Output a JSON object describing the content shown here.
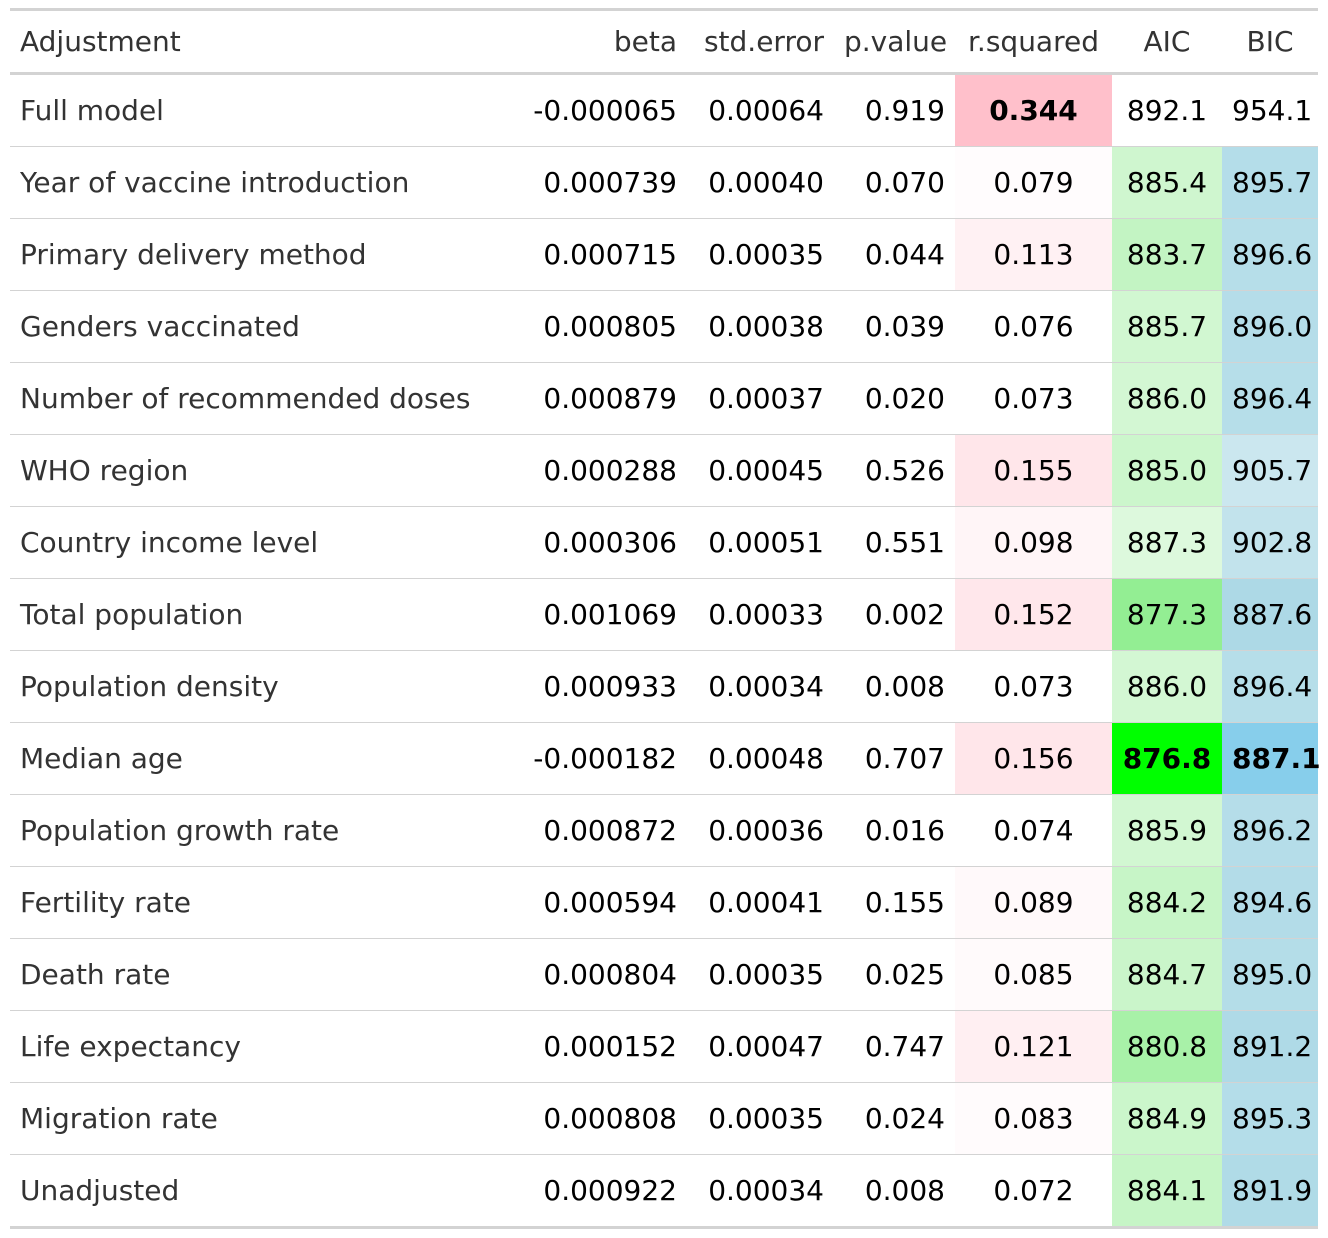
{
  "chart_data": {
    "type": "table",
    "columns": [
      "Adjustment",
      "beta",
      "std.error",
      "p.value",
      "r.squared",
      "AIC",
      "BIC"
    ],
    "rows": [
      {
        "label": "Full model",
        "beta": "-0.000065",
        "std_error": "0.00064",
        "p_value": "0.919",
        "r_squared": "0.344",
        "aic": "892.1",
        "bic": "954.1",
        "r_squared_bg": "#ffc0cb",
        "aic_bg": "#ffffff",
        "bic_bg": "#ffffff",
        "bold_r_squared": true,
        "bold_aic": false,
        "bold_bic": false
      },
      {
        "label": "Year of vaccine introduction",
        "beta": "0.000739",
        "std_error": "0.00040",
        "p_value": "0.070",
        "r_squared": "0.079",
        "aic": "885.4",
        "bic": "895.7",
        "r_squared_bg": "#fffcfd",
        "aic_bg": "#cff6cf",
        "bic_bg": "#b4dde9",
        "bold_r_squared": false,
        "bold_aic": false,
        "bold_bic": false
      },
      {
        "label": "Primary delivery method",
        "beta": "0.000715",
        "std_error": "0.00035",
        "p_value": "0.044",
        "r_squared": "0.113",
        "aic": "883.7",
        "bic": "896.6",
        "r_squared_bg": "#fff1f3",
        "aic_bg": "#c3f4c3",
        "bic_bg": "#b6dee9",
        "bold_r_squared": false,
        "bold_aic": false,
        "bold_bic": false
      },
      {
        "label": "Genders vaccinated",
        "beta": "0.000805",
        "std_error": "0.00038",
        "p_value": "0.039",
        "r_squared": "0.076",
        "aic": "885.7",
        "bic": "896.0",
        "r_squared_bg": "#ffffff",
        "aic_bg": "#d1f7d1",
        "bic_bg": "#b5dde9",
        "bold_r_squared": false,
        "bold_aic": false,
        "bold_bic": false
      },
      {
        "label": "Number of recommended doses",
        "beta": "0.000879",
        "std_error": "0.00037",
        "p_value": "0.020",
        "r_squared": "0.073",
        "aic": "886.0",
        "bic": "896.4",
        "r_squared_bg": "#ffffff",
        "aic_bg": "#d3f7d3",
        "bic_bg": "#b6dee9",
        "bold_r_squared": false,
        "bold_aic": false,
        "bold_bic": false
      },
      {
        "label": "WHO region",
        "beta": "0.000288",
        "std_error": "0.00045",
        "p_value": "0.526",
        "r_squared": "0.155",
        "aic": "885.0",
        "bic": "905.7",
        "r_squared_bg": "#ffe6ea",
        "aic_bg": "#ccf6cc",
        "bic_bg": "#cbe7ef",
        "bold_r_squared": false,
        "bold_aic": false,
        "bold_bic": false
      },
      {
        "label": "Country income level",
        "beta": "0.000306",
        "std_error": "0.00051",
        "p_value": "0.551",
        "r_squared": "0.098",
        "aic": "887.3",
        "bic": "902.8",
        "r_squared_bg": "#fff5f7",
        "aic_bg": "#ddf9dd",
        "bic_bg": "#c2e3ec",
        "bold_r_squared": false,
        "bold_aic": false,
        "bold_bic": false
      },
      {
        "label": "Total population",
        "beta": "0.001069",
        "std_error": "0.00033",
        "p_value": "0.002",
        "r_squared": "0.152",
        "aic": "877.3",
        "bic": "887.6",
        "r_squared_bg": "#ffe7eb",
        "aic_bg": "#93ee93",
        "bic_bg": "#add9e6",
        "bold_r_squared": false,
        "bold_aic": false,
        "bold_bic": false
      },
      {
        "label": "Population density",
        "beta": "0.000933",
        "std_error": "0.00034",
        "p_value": "0.008",
        "r_squared": "0.073",
        "aic": "886.0",
        "bic": "896.4",
        "r_squared_bg": "#ffffff",
        "aic_bg": "#d3f7d3",
        "bic_bg": "#b6dee9",
        "bold_r_squared": false,
        "bold_aic": false,
        "bold_bic": false
      },
      {
        "label": "Median age",
        "beta": "-0.000182",
        "std_error": "0.00048",
        "p_value": "0.707",
        "r_squared": "0.156",
        "aic": "876.8",
        "bic": "887.1",
        "r_squared_bg": "#ffe6ea",
        "aic_bg": "#00ff00",
        "bic_bg": "#87ceeb",
        "bold_r_squared": false,
        "bold_aic": true,
        "bold_bic": true
      },
      {
        "label": "Population growth rate",
        "beta": "0.000872",
        "std_error": "0.00036",
        "p_value": "0.016",
        "r_squared": "0.074",
        "aic": "885.9",
        "bic": "896.2",
        "r_squared_bg": "#ffffff",
        "aic_bg": "#d2f7d2",
        "bic_bg": "#b5dde9",
        "bold_r_squared": false,
        "bold_aic": false,
        "bold_bic": false
      },
      {
        "label": "Fertility rate",
        "beta": "0.000594",
        "std_error": "0.00041",
        "p_value": "0.155",
        "r_squared": "0.089",
        "aic": "884.2",
        "bic": "894.6",
        "r_squared_bg": "#fff9fa",
        "aic_bg": "#c7f5c7",
        "bic_bg": "#b3dce8",
        "bold_r_squared": false,
        "bold_aic": false,
        "bold_bic": false
      },
      {
        "label": "Death rate",
        "beta": "0.000804",
        "std_error": "0.00035",
        "p_value": "0.025",
        "r_squared": "0.085",
        "aic": "884.7",
        "bic": "895.0",
        "r_squared_bg": "#fffafb",
        "aic_bg": "#caf5ca",
        "bic_bg": "#b4dde8",
        "bold_r_squared": false,
        "bold_aic": false,
        "bold_bic": false
      },
      {
        "label": "Life expectancy",
        "beta": "0.000152",
        "std_error": "0.00047",
        "p_value": "0.747",
        "r_squared": "0.121",
        "aic": "880.8",
        "bic": "891.2",
        "r_squared_bg": "#ffeff2",
        "aic_bg": "#a8f1a8",
        "bic_bg": "#afdae7",
        "bold_r_squared": false,
        "bold_aic": false,
        "bold_bic": false
      },
      {
        "label": "Migration rate",
        "beta": "0.000808",
        "std_error": "0.00035",
        "p_value": "0.024",
        "r_squared": "0.083",
        "aic": "884.9",
        "bic": "895.3",
        "r_squared_bg": "#fffbfc",
        "aic_bg": "#cbf6cb",
        "bic_bg": "#b4dde9",
        "bold_r_squared": false,
        "bold_aic": false,
        "bold_bic": false
      },
      {
        "label": "Unadjusted",
        "beta": "0.000922",
        "std_error": "0.00034",
        "p_value": "0.008",
        "r_squared": "0.072",
        "aic": "884.1",
        "bic": "891.9",
        "r_squared_bg": "#ffffff",
        "aic_bg": "#c6f5c6",
        "bic_bg": "#b0dbe7",
        "bold_r_squared": false,
        "bold_aic": false,
        "bold_bic": false
      }
    ]
  }
}
